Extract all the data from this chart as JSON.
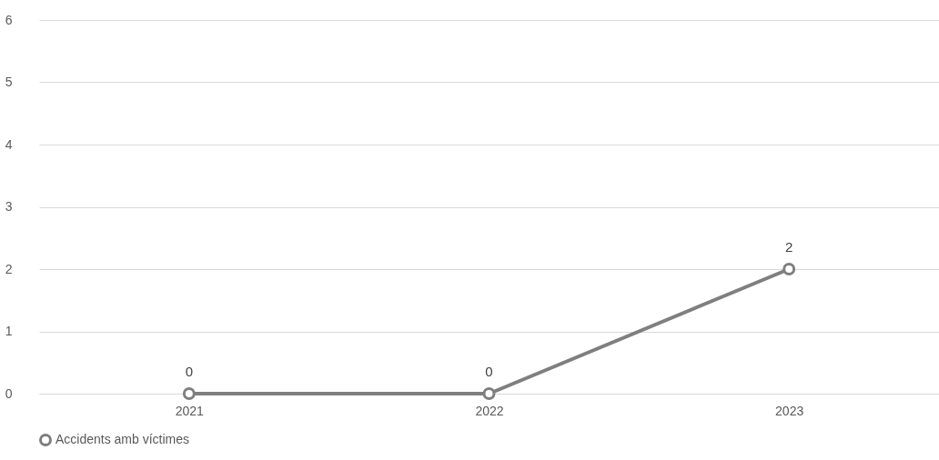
{
  "chart_data": {
    "type": "line",
    "categories": [
      "2021",
      "2022",
      "2023"
    ],
    "series": [
      {
        "name": "Accidents amb víctimes",
        "color": "#7f7f7f",
        "values": [
          0,
          0,
          2
        ]
      }
    ],
    "ylim": [
      0,
      6
    ],
    "yticks": [
      0,
      1,
      2,
      3,
      4,
      5,
      6
    ],
    "grid": "y",
    "legend": "bottom",
    "marker": "circle",
    "data_labels": true
  }
}
